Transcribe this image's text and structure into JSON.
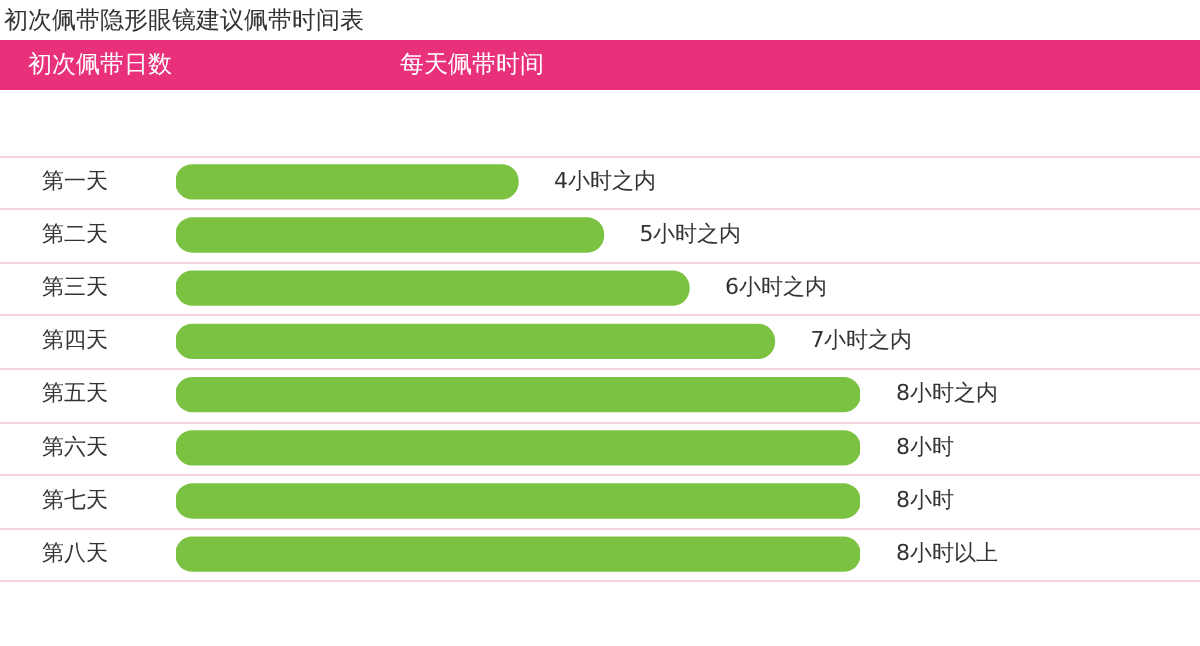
{
  "chart_data": {
    "type": "bar",
    "orientation": "horizontal",
    "tick_labels": "y",
    "title": "初次佩带隐形眼镜建议佩带时间表",
    "ylabel": "初次佩带日数",
    "xlabel": "每天佩带时间",
    "categories": [
      "第一天",
      "第二天",
      "第三天",
      "第四天",
      "第五天",
      "第六天",
      "第七天",
      "第八天"
    ],
    "values": [
      4,
      5,
      6,
      7,
      8,
      8,
      8,
      8
    ],
    "value_labels": [
      "4小时之内",
      "5小时之内",
      "6小时之内",
      "7小时之内",
      "8小时之内",
      "8小时",
      "8小时",
      "8小时以上"
    ],
    "color": "#7cc242",
    "grid": "y",
    "legend": false
  }
}
